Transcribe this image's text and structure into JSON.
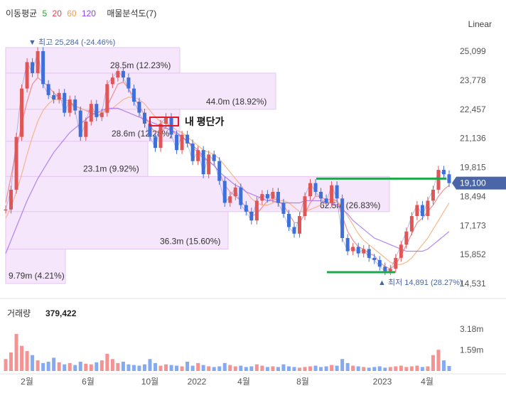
{
  "legend": {
    "ma_label": "이동평균",
    "ma": [
      {
        "period": "5",
        "color": "#2ca02c"
      },
      {
        "period": "20",
        "color": "#e8414f"
      },
      {
        "period": "60",
        "color": "#f39c50"
      },
      {
        "period": "120",
        "color": "#8e44ef"
      }
    ],
    "vp_label": "매물분석도(7)"
  },
  "scale_button": "Linear",
  "colors": {
    "up": "#f16d6d",
    "down": "#5b8def",
    "vp_fill": "#f5e6fb",
    "vp_stroke": "#e6c6f2",
    "target_line": "#1fa84a",
    "badge": "#4a66a8"
  },
  "chart_data": {
    "type": "candlestick",
    "x_ticks": [
      "2월",
      "6월",
      "10월",
      "2022",
      "4월",
      "8월",
      "2023",
      "4월"
    ],
    "y_ticks": [
      "25,099",
      "23,778",
      "22,457",
      "21,136",
      "19,815",
      "18,494",
      "17,173",
      "15,852",
      "14,531"
    ],
    "ylim": [
      14531,
      25099
    ],
    "current_price": "19,100",
    "high_label": "최고 25,284 (-24.46%)",
    "low_label": "최저 14,891 (28.27%)",
    "price_series": [
      17900,
      18800,
      21200,
      23400,
      24600,
      24100,
      25100,
      23600,
      23100,
      22900,
      23200,
      22300,
      22900,
      22400,
      21200,
      21900,
      22700,
      22100,
      22300,
      23600,
      23900,
      24200,
      23900,
      23400,
      22800,
      22300,
      21800,
      21200,
      20700,
      21800,
      22100,
      21300,
      20600,
      21300,
      20900,
      20100,
      20600,
      19500,
      20400,
      20100,
      19200,
      18200,
      18500,
      18900,
      18100,
      17800,
      17400,
      18300,
      18600,
      18400,
      18700,
      18200,
      17700,
      17100,
      16800,
      17600,
      18500,
      19100,
      18700,
      18400,
      18200,
      19000,
      18400,
      16600,
      16000,
      16200,
      15900,
      16100,
      15700,
      15600,
      15300,
      15100,
      15200,
      15700,
      16300,
      16900,
      17600,
      18100,
      17600,
      18300,
      18800,
      19700,
      19500,
      19100
    ],
    "ma_series": [
      {
        "name": "20",
        "values": [
          18200,
          19400,
          20600,
          21800,
          22800,
          23600,
          23900,
          23700,
          23500,
          23200,
          23000,
          22900,
          22800,
          22600,
          22500,
          22400,
          22300,
          22200,
          22200,
          22600,
          23100,
          23600,
          23700,
          23400,
          23000,
          22600,
          22200,
          21700,
          21400,
          21500,
          21600,
          21500,
          21300,
          21200,
          21000,
          20700,
          20500,
          20200,
          20100,
          19900,
          19600,
          19000,
          18700,
          18500,
          18300,
          18000,
          17600,
          17700,
          18000,
          18300,
          18400,
          18300,
          18100,
          17700,
          17300,
          17300,
          17700,
          18200,
          18500,
          18500,
          18300,
          18400,
          18300,
          17600,
          16900,
          16500,
          16200,
          16100,
          15900,
          15800,
          15500,
          15300,
          15200,
          15400,
          15800,
          16300,
          16800,
          17300,
          17500,
          17800,
          18100,
          18500,
          18800,
          19000
        ]
      },
      {
        "name": "60",
        "values": [
          17500,
          18000,
          18700,
          19500,
          20400,
          21200,
          21900,
          22400,
          22700,
          22900,
          22900,
          22800,
          22700,
          22600,
          22500,
          22400,
          22400,
          22300,
          22300,
          22400,
          22500,
          22700,
          22900,
          23000,
          23000,
          22900,
          22700,
          22400,
          22100,
          21900,
          21800,
          21700,
          21500,
          21400,
          21200,
          21000,
          20800,
          20600,
          20500,
          20400,
          20200,
          19900,
          19600,
          19300,
          19000,
          18700,
          18400,
          18200,
          18100,
          18100,
          18200,
          18300,
          18300,
          18200,
          18000,
          17800,
          17800,
          17900,
          18000,
          18100,
          18200,
          18300,
          18300,
          18000,
          17600,
          17200,
          16800,
          16500,
          16300,
          16100,
          15900,
          15700,
          15500,
          15400,
          15400,
          15500,
          15700,
          16000,
          16300,
          16600,
          17000,
          17400,
          17800,
          18200
        ]
      },
      {
        "name": "120",
        "values": [
          15900,
          16500,
          17100,
          17700,
          18300,
          18800,
          19300,
          19700,
          20100,
          20500,
          20800,
          21100,
          21400,
          21600,
          21800,
          22000,
          22200,
          22300,
          22400,
          22500,
          22500,
          22500,
          22400,
          22300,
          22200,
          22100,
          22000,
          21900,
          21800,
          21700,
          21600,
          21500,
          21400,
          21200,
          21000,
          20800,
          20600,
          20300,
          20100,
          19900,
          19600,
          19400,
          19200,
          19000,
          18900,
          18700,
          18600,
          18500,
          18400,
          18300,
          18300,
          18200,
          18200,
          18200,
          18200,
          18200,
          18300,
          18300,
          18300,
          18300,
          18200,
          18200,
          18100,
          17900,
          17700,
          17400,
          17200,
          17000,
          16800,
          16600,
          16500,
          16400,
          16300,
          16200,
          16100,
          16000,
          16000,
          16000,
          16000,
          16100,
          16300,
          16500,
          16700,
          16900
        ]
      }
    ],
    "volume_profile": [
      {
        "price_low": 24100,
        "price_high": 25284,
        "label": "28.5m (12.23%)"
      },
      {
        "price_low": 22457,
        "price_high": 24100,
        "label": "44.0m (18.92%)"
      },
      {
        "price_low": 21000,
        "price_high": 22457,
        "label": "28.6m (12.28%)"
      },
      {
        "price_low": 19400,
        "price_high": 21000,
        "label": "23.1m (9.92%)"
      },
      {
        "price_low": 17800,
        "price_high": 19400,
        "label": "62.5m (26.83%)"
      },
      {
        "price_low": 16100,
        "price_high": 17800,
        "label": "36.3m (15.60%)"
      },
      {
        "price_low": 14531,
        "price_high": 16100,
        "label": "9.79m (4.21%)"
      }
    ],
    "annotation": {
      "text": "내 평단가",
      "price": 21900
    },
    "target_line_price": 19300,
    "support_line_price": 15050,
    "volume": {
      "title": "거래량",
      "value": "379,422",
      "y_ticks": [
        "3.18m",
        "1.59m"
      ],
      "ylim": [
        0,
        3600000
      ],
      "values": [
        900000,
        1400000,
        2800000,
        1900000,
        1500000,
        1200000,
        800000,
        600000,
        700000,
        1000000,
        650000,
        500000,
        600000,
        450000,
        700000,
        550000,
        500000,
        650000,
        800000,
        1300000,
        900000,
        600000,
        700000,
        500000,
        450000,
        400000,
        500000,
        900000,
        600000,
        400000,
        500000,
        450000,
        400000,
        350000,
        700000,
        400000,
        600000,
        450000,
        350000,
        300000,
        350000,
        600000,
        450000,
        350000,
        400000,
        300000,
        350000,
        500000,
        400000,
        300000,
        350000,
        300000,
        500000,
        350000,
        300000,
        250000,
        300000,
        350000,
        400000,
        300000,
        350000,
        450000,
        400000,
        900000,
        600000,
        400000,
        350000,
        300000,
        250000,
        300000,
        350000,
        250000,
        300000,
        350000,
        400000,
        300000,
        350000,
        400000,
        300000,
        350000,
        1200000,
        1600000,
        800000,
        379422
      ]
    }
  }
}
